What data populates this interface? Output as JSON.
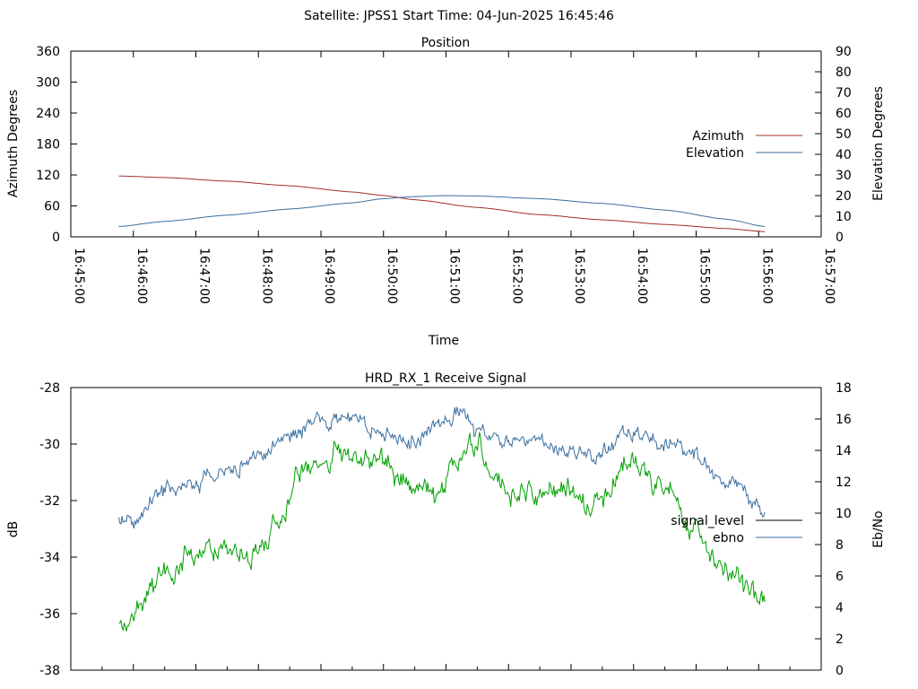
{
  "header": {
    "title": "Satellite: JPSS1    Start Time: 04-Jun-2025 16:45:46"
  },
  "colors": {
    "azimuth": "#a0302a",
    "elevation": "#3a6fa0",
    "signal_level": "#000000",
    "ebno": "#3a6fa0",
    "green_series": "#00a000",
    "axis": "#000000"
  },
  "chart_data": [
    {
      "type": "line",
      "title": "Position",
      "xlabel": "Time",
      "ylabel": "Azimuth Degrees",
      "y2label": "Elevation Degrees",
      "xlim": [
        "16:45:00",
        "16:57:00"
      ],
      "xticks": [
        "16:45:00",
        "16:46:00",
        "16:47:00",
        "16:48:00",
        "16:49:00",
        "16:50:00",
        "16:51:00",
        "16:52:00",
        "16:53:00",
        "16:54:00",
        "16:55:00",
        "16:56:00",
        "16:57:00"
      ],
      "ylim": [
        0,
        360
      ],
      "yticks": [
        0,
        60,
        120,
        180,
        240,
        300,
        360
      ],
      "y2lim": [
        0,
        90
      ],
      "y2ticks": [
        0,
        10,
        20,
        30,
        40,
        50,
        60,
        70,
        80,
        90
      ],
      "legend_position": "right",
      "series": [
        {
          "name": "Azimuth",
          "axis": "left",
          "x": [
            "16:45:46",
            "16:46:30",
            "16:47:30",
            "16:48:30",
            "16:49:30",
            "16:50:00",
            "16:50:30",
            "16:51:30",
            "16:52:30",
            "16:53:30",
            "16:54:30",
            "16:55:30",
            "16:56:06"
          ],
          "y": [
            118,
            115,
            108,
            99,
            87,
            80,
            72,
            57,
            43,
            33,
            24,
            16,
            10
          ]
        },
        {
          "name": "Elevation",
          "axis": "right",
          "x": [
            "16:45:46",
            "16:46:30",
            "16:47:30",
            "16:48:30",
            "16:49:30",
            "16:50:00",
            "16:50:30",
            "16:51:00",
            "16:51:30",
            "16:52:30",
            "16:53:30",
            "16:54:30",
            "16:55:30",
            "16:56:06"
          ],
          "y": [
            5,
            7.5,
            10.5,
            13.5,
            16.5,
            18.5,
            19.5,
            20,
            19.8,
            18.5,
            16.2,
            13,
            8.5,
            5
          ]
        }
      ]
    },
    {
      "type": "line",
      "title": "HRD_RX_1 Receive Signal",
      "xlabel": "",
      "ylabel": "dB",
      "y2label": "Eb/No",
      "xlim": [
        "16:45:00",
        "16:57:00"
      ],
      "ylim": [
        -38,
        -28
      ],
      "yticks": [
        -38,
        -36,
        -34,
        -32,
        -30,
        -28
      ],
      "y2lim": [
        0,
        18
      ],
      "y2ticks": [
        0,
        2,
        4,
        6,
        8,
        10,
        12,
        14,
        16,
        18
      ],
      "legend_position": "right",
      "series": [
        {
          "name": "signal_level",
          "axis": "left",
          "x": [],
          "y": []
        },
        {
          "name": "ebno",
          "axis": "right",
          "x": [
            "16:45:46",
            "16:46:00",
            "16:46:30",
            "16:47:00",
            "16:47:30",
            "16:48:00",
            "16:48:30",
            "16:49:00",
            "16:49:30",
            "16:50:00",
            "16:50:30",
            "16:51:00",
            "16:51:15",
            "16:51:30",
            "16:52:00",
            "16:52:30",
            "16:53:00",
            "16:53:30",
            "16:54:00",
            "16:54:30",
            "16:55:00",
            "16:55:30",
            "16:56:00",
            "16:56:06"
          ],
          "y": [
            9.5,
            9.5,
            11.5,
            12,
            12.5,
            13.5,
            15,
            15.8,
            16,
            15,
            14.5,
            15.8,
            16.5,
            15,
            14.5,
            14.5,
            14,
            13.8,
            15.2,
            14.5,
            13.5,
            12,
            10.5,
            9.7
          ]
        },
        {
          "axis": "left",
          "x": [
            "16:45:46",
            "16:46:00",
            "16:46:15",
            "16:46:30",
            "16:47:00",
            "16:47:30",
            "16:48:00",
            "16:48:20",
            "16:48:45",
            "16:49:15",
            "16:49:30",
            "16:50:00",
            "16:50:15",
            "16:50:30",
            "16:50:50",
            "16:51:10",
            "16:51:30",
            "16:51:45",
            "16:52:00",
            "16:52:30",
            "16:53:00",
            "16:53:15",
            "16:53:30",
            "16:54:00",
            "16:54:30",
            "16:55:00",
            "16:55:30",
            "16:56:00",
            "16:56:06"
          ],
          "y": [
            -36.3,
            -36.1,
            -35.5,
            -34.5,
            -33.8,
            -33.7,
            -34.0,
            -32.5,
            -30.8,
            -30.4,
            -30.3,
            -30.6,
            -31.3,
            -31.6,
            -32.0,
            -30.6,
            -29.9,
            -31.2,
            -31.7,
            -32.0,
            -31.6,
            -32.4,
            -32.0,
            -30.5,
            -31.6,
            -33.2,
            -34.5,
            -35.3,
            -35.1
          ]
        }
      ]
    }
  ]
}
